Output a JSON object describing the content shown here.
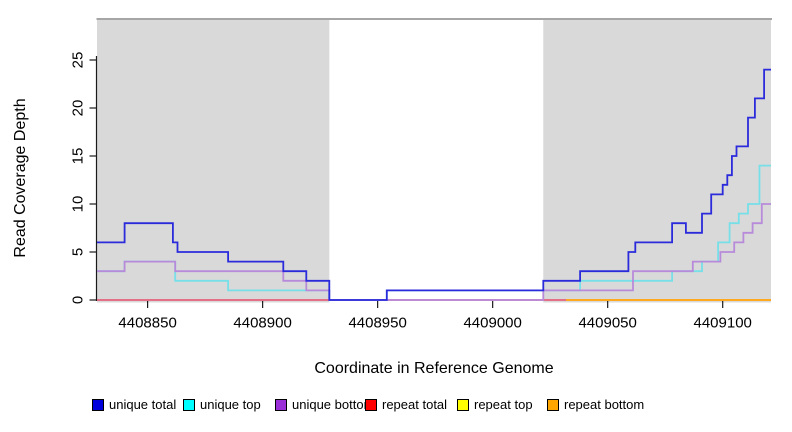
{
  "figure": {
    "background": "#ffffff",
    "plot_bg_highlight": "#d9d9d9",
    "frame_color": "#707070",
    "axis_color": "#1a1a1a"
  },
  "axes": {
    "x": {
      "label": "Coordinate in Reference Genome",
      "ticks": [
        "4408850",
        "4408900",
        "4408950",
        "4409000",
        "4409050",
        "4409100"
      ],
      "tick_values": [
        4408850,
        4408900,
        4408950,
        4409000,
        4409050,
        4409100
      ]
    },
    "y": {
      "label": "Read Coverage Depth",
      "ticks": [
        "0",
        "5",
        "10",
        "15",
        "20",
        "25"
      ],
      "tick_values": [
        0,
        5,
        10,
        15,
        20,
        25
      ],
      "range": [
        0,
        29
      ]
    }
  },
  "chart_data": {
    "type": "line",
    "subtype": "step",
    "title": "",
    "xlabel": "Coordinate in Reference Genome",
    "ylabel": "Read Coverage Depth",
    "x_domain": [
      4408828,
      4409121
    ],
    "ylim": [
      0,
      29
    ],
    "grid": false,
    "legend_position": "bottom",
    "highlight_regions": [
      {
        "name": "left-repeat-region",
        "x0": 4408828,
        "x1": 4408929
      },
      {
        "name": "right-repeat-region",
        "x0": 4409022,
        "x1": 4409121
      }
    ],
    "series": [
      {
        "name": "repeat total",
        "line_color": "#e4607a",
        "legend_color": "#ff0000",
        "steps": [
          [
            4408828,
            0
          ],
          [
            4409121,
            0
          ]
        ]
      },
      {
        "name": "repeat top",
        "line_color": "#ffe400",
        "legend_color": "#ffff00",
        "steps": [
          [
            4408828,
            0
          ],
          [
            4408929,
            null
          ],
          [
            4409032,
            0
          ],
          [
            4409121,
            0
          ]
        ]
      },
      {
        "name": "repeat bottom",
        "line_color": "#ffa41e",
        "legend_color": "#ffa500",
        "steps": [
          [
            4408828,
            0
          ],
          [
            4408929,
            null
          ],
          [
            4409032,
            0
          ],
          [
            4409121,
            0
          ]
        ]
      },
      {
        "name": "unique top",
        "line_color": "#76dfe8",
        "legend_color": "#00ffff",
        "steps": [
          [
            4408828,
            3
          ],
          [
            4408840,
            4
          ],
          [
            4408862,
            2
          ],
          [
            4408885,
            1
          ],
          [
            4408929,
            0
          ],
          [
            4408954,
            1
          ],
          [
            4409038,
            2
          ],
          [
            4409062,
            2
          ],
          [
            4409078,
            3
          ],
          [
            4409091,
            4
          ],
          [
            4409098,
            6
          ],
          [
            4409103,
            8
          ],
          [
            4409107,
            9
          ],
          [
            4409111,
            10
          ],
          [
            4409116,
            14
          ],
          [
            4409121,
            14
          ]
        ]
      },
      {
        "name": "unique bottom",
        "line_color": "#b88ada",
        "legend_color": "#9b30d9",
        "steps": [
          [
            4408828,
            3
          ],
          [
            4408840,
            4
          ],
          [
            4408862,
            3
          ],
          [
            4408909,
            2
          ],
          [
            4408919,
            1
          ],
          [
            4408929,
            0
          ],
          [
            4409022,
            1
          ],
          [
            4409061,
            3
          ],
          [
            4409087,
            4
          ],
          [
            4409099,
            5
          ],
          [
            4409105,
            6
          ],
          [
            4409109,
            7
          ],
          [
            4409113,
            8
          ],
          [
            4409117,
            10
          ],
          [
            4409121,
            10
          ]
        ]
      },
      {
        "name": "unique total",
        "line_color": "#2b2bdc",
        "legend_color": "#0000dd",
        "steps": [
          [
            4408828,
            6
          ],
          [
            4408840,
            8
          ],
          [
            4408861,
            6
          ],
          [
            4408863,
            5
          ],
          [
            4408885,
            4
          ],
          [
            4408909,
            3
          ],
          [
            4408919,
            2
          ],
          [
            4408929,
            0
          ],
          [
            4408954,
            1
          ],
          [
            4409022,
            2
          ],
          [
            4409038,
            3
          ],
          [
            4409059,
            5
          ],
          [
            4409062,
            6
          ],
          [
            4409078,
            8
          ],
          [
            4409084,
            7
          ],
          [
            4409091,
            9
          ],
          [
            4409095,
            11
          ],
          [
            4409100,
            12
          ],
          [
            4409102,
            13
          ],
          [
            4409104,
            15
          ],
          [
            4409106,
            16
          ],
          [
            4409111,
            19
          ],
          [
            4409114,
            21
          ],
          [
            4409118,
            24
          ],
          [
            4409121,
            24
          ]
        ]
      }
    ]
  },
  "legend": {
    "items": [
      {
        "label": "unique total",
        "color": "#0000dd",
        "x": 92
      },
      {
        "label": "unique top",
        "color": "#00ffff",
        "x": 183
      },
      {
        "label": "unique bottom",
        "color": "#9b30d9",
        "x": 275
      },
      {
        "label": "repeat total",
        "color": "#ff0000",
        "x": 365
      },
      {
        "label": "repeat top",
        "color": "#ffff00",
        "x": 457
      },
      {
        "label": "repeat bottom",
        "color": "#ffa500",
        "x": 547
      }
    ]
  }
}
